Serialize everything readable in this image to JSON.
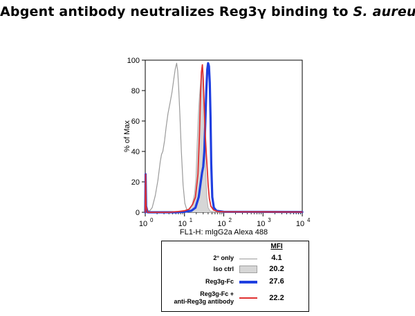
{
  "title": {
    "prefix": "Abgent antibody neutralizes Reg3",
    "greek": "γ",
    "middle": " binding to ",
    "italic": "S. aureus"
  },
  "chart_data": {
    "type": "histogram",
    "xlabel": "FL1-H: mIgG2a Alexa 488",
    "ylabel": "% of Max",
    "x_scale": "log",
    "xlim": [
      1,
      10000
    ],
    "ylim": [
      0,
      100
    ],
    "x_ticks": [
      {
        "value": 1,
        "base": "10",
        "exp": "0"
      },
      {
        "value": 10,
        "base": "10",
        "exp": "1"
      },
      {
        "value": 100,
        "base": "10",
        "exp": "2"
      },
      {
        "value": 1000,
        "base": "10",
        "exp": "3"
      },
      {
        "value": 10000,
        "base": "10",
        "exp": "4"
      }
    ],
    "y_ticks": [
      "0",
      "20",
      "40",
      "60",
      "80",
      "100"
    ],
    "series": [
      {
        "key": "secondary_only",
        "color": "#9a9a9a",
        "width": 1.2,
        "fill": false,
        "points": [
          [
            1.0,
            0
          ],
          [
            1.02,
            24
          ],
          [
            1.05,
            6
          ],
          [
            1.12,
            1
          ],
          [
            1.3,
            1
          ],
          [
            1.5,
            3
          ],
          [
            1.8,
            11
          ],
          [
            2.1,
            21
          ],
          [
            2.4,
            33
          ],
          [
            2.6,
            38
          ],
          [
            2.8,
            40
          ],
          [
            3.1,
            47
          ],
          [
            3.4,
            56
          ],
          [
            3.8,
            65
          ],
          [
            4.3,
            72
          ],
          [
            4.8,
            79
          ],
          [
            5.3,
            87
          ],
          [
            5.8,
            94
          ],
          [
            6.3,
            98
          ],
          [
            6.7,
            93
          ],
          [
            7.1,
            82
          ],
          [
            7.6,
            65
          ],
          [
            8.3,
            40
          ],
          [
            9.2,
            18
          ],
          [
            10.2,
            6
          ],
          [
            11.5,
            1.5
          ],
          [
            13,
            0.5
          ],
          [
            20,
            0.3
          ],
          [
            50,
            0.2
          ],
          [
            10000,
            0.2
          ]
        ]
      },
      {
        "key": "iso_ctrl",
        "color": "#b0b0b0",
        "fillColor": "#d6d6d6",
        "width": 1,
        "fill": true,
        "points": [
          [
            1.0,
            0
          ],
          [
            1.02,
            25
          ],
          [
            1.05,
            5
          ],
          [
            1.15,
            0.5
          ],
          [
            8,
            0.3
          ],
          [
            12,
            1
          ],
          [
            14,
            2.5
          ],
          [
            16,
            6
          ],
          [
            18,
            12
          ],
          [
            19.5,
            22
          ],
          [
            21,
            45
          ],
          [
            22.5,
            64
          ],
          [
            24,
            76
          ],
          [
            26,
            87
          ],
          [
            27.5,
            95
          ],
          [
            29,
            90
          ],
          [
            31,
            70
          ],
          [
            33,
            46
          ],
          [
            35,
            24
          ],
          [
            37,
            10
          ],
          [
            40,
            3
          ],
          [
            45,
            0.8
          ],
          [
            60,
            0.2
          ],
          [
            10000,
            0.1
          ]
        ]
      },
      {
        "key": "reg3g_fc",
        "color": "#1f3fe0",
        "width": 3.2,
        "fill": false,
        "points": [
          [
            1.0,
            0
          ],
          [
            1.02,
            25
          ],
          [
            1.05,
            4
          ],
          [
            1.15,
            0
          ],
          [
            6,
            0
          ],
          [
            10,
            0.3
          ],
          [
            15,
            1
          ],
          [
            19,
            3
          ],
          [
            23,
            10
          ],
          [
            26,
            20
          ],
          [
            28,
            26
          ],
          [
            30,
            30
          ],
          [
            32,
            40
          ],
          [
            34,
            60
          ],
          [
            36,
            80
          ],
          [
            38,
            94
          ],
          [
            40,
            98
          ],
          [
            42,
            96
          ],
          [
            44,
            85
          ],
          [
            46,
            62
          ],
          [
            48,
            32
          ],
          [
            51,
            10
          ],
          [
            56,
            3
          ],
          [
            65,
            1
          ],
          [
            100,
            0.3
          ],
          [
            10000,
            0.2
          ]
        ]
      },
      {
        "key": "reg3g_fc_anti",
        "color": "#e03030",
        "width": 1.8,
        "fill": false,
        "points": [
          [
            1.0,
            0
          ],
          [
            1.02,
            25
          ],
          [
            1.05,
            4
          ],
          [
            1.15,
            0
          ],
          [
            4,
            0
          ],
          [
            7,
            0.5
          ],
          [
            10,
            1
          ],
          [
            13,
            2
          ],
          [
            16,
            5
          ],
          [
            19,
            10
          ],
          [
            22,
            25
          ],
          [
            24,
            50
          ],
          [
            25.5,
            75
          ],
          [
            27,
            92
          ],
          [
            28.5,
            97
          ],
          [
            30,
            88
          ],
          [
            32,
            68
          ],
          [
            34,
            50
          ],
          [
            36,
            38
          ],
          [
            38,
            28
          ],
          [
            40,
            18
          ],
          [
            43,
            9
          ],
          [
            47,
            4
          ],
          [
            55,
            1.5
          ],
          [
            70,
            0.5
          ],
          [
            100,
            0.3
          ],
          [
            10000,
            0.2
          ]
        ]
      }
    ]
  },
  "legend": {
    "mfi_header": "MFI",
    "rows": [
      {
        "label": "2° only",
        "value": "4.1"
      },
      {
        "label": "Iso ctrl",
        "value": "20.2"
      },
      {
        "label": "Reg3g-Fc",
        "value": "27.6"
      },
      {
        "label_line1": "Reg3g-Fc +",
        "label_line2": "anti-Reg3g antibody",
        "value": "22.2"
      }
    ]
  }
}
